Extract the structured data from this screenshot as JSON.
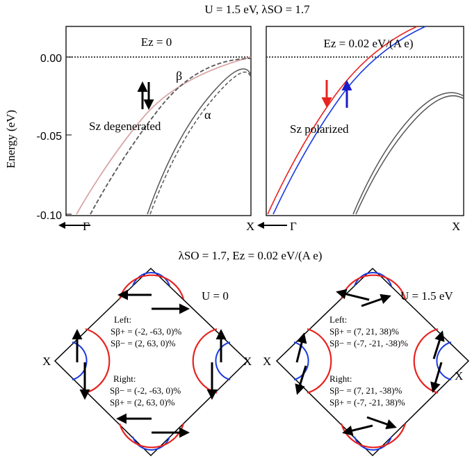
{
  "top": {
    "title": "U = 1.5 eV, λSO = 1.7",
    "ylabel": "Energy (eV)",
    "yticks": [
      "0.00",
      "-0.05",
      "-0.10"
    ],
    "left": {
      "label": "Ez = 0",
      "beta": "β",
      "alpha": "α",
      "note": "Sz degenerated",
      "x_start": "Γ",
      "x_end": "X"
    },
    "right": {
      "label": "Ez = 0.02 eV/(A e)",
      "note": "Sz polarized",
      "x_start": "Γ",
      "x_end": "X"
    }
  },
  "bottom": {
    "title": "λSO = 1.7, Ez = 0.02 eV/(A e)",
    "left": {
      "label": "U = 0",
      "x_left": "X",
      "x_right": "X",
      "left_head": "Left:",
      "left_line1": "Sβ+ = (-2, -63, 0)%",
      "left_line2": "Sβ− = (2, 63, 0)%",
      "right_head": "Right:",
      "right_line1": "Sβ− = (-2, -63, 0)%",
      "right_line2": "Sβ+ = (2, 63, 0)%"
    },
    "right": {
      "label": "U = 1.5 eV",
      "x_left": "X",
      "x_right": "X",
      "left_head": "Left:",
      "left_line1": "Sβ+ = (7, 21, 38)%",
      "left_line2": "Sβ− = (-7, -21, -38)%",
      "right_head": "Right:",
      "right_line1": "Sβ− = (7, 21, -38)%",
      "right_line2": "Sβ+ = (-7, -21, 38)%"
    }
  },
  "chart_data": [
    {
      "type": "line",
      "title": "Ez = 0",
      "xlabel": "",
      "ylabel": "Energy (eV)",
      "x_ticks": [
        "Γ",
        "X"
      ],
      "ylim": [
        -0.1,
        0.02
      ],
      "yticks": [
        0.0,
        -0.05,
        -0.1
      ],
      "grid": false,
      "series": [
        {
          "name": "β",
          "color": "#d4a3a3",
          "x": [
            0.05,
            0.15,
            0.3,
            0.5,
            0.7,
            0.9,
            1.0
          ],
          "values": [
            -0.1,
            -0.075,
            -0.045,
            -0.022,
            -0.009,
            -0.002,
            0.0
          ]
        },
        {
          "name": "",
          "color": "#555555",
          "x": [
            0.13,
            0.22,
            0.35,
            0.55,
            0.75,
            0.92,
            1.0
          ],
          "values": [
            -0.1,
            -0.078,
            -0.05,
            -0.027,
            -0.012,
            -0.004,
            -0.001
          ]
        },
        {
          "name": "α",
          "color": "#555555",
          "x": [
            0.5,
            0.6,
            0.72,
            0.85,
            0.95,
            1.0
          ],
          "values": [
            -0.1,
            -0.07,
            -0.04,
            -0.022,
            -0.014,
            -0.012
          ]
        },
        {
          "name": "",
          "color": "#555555",
          "x": [
            0.0,
            1.0
          ],
          "values": [
            0.0,
            0.0
          ]
        }
      ]
    },
    {
      "type": "line",
      "title": "Ez = 0.02 eV/(A e)",
      "xlabel": "",
      "ylabel": "",
      "x_ticks": [
        "Γ",
        "X"
      ],
      "ylim": [
        -0.1,
        0.02
      ],
      "grid": false,
      "series": [
        {
          "name": "",
          "color": "#e83a3a",
          "x": [
            0.0,
            0.15,
            0.35,
            0.55,
            0.72,
            0.85
          ],
          "values": [
            -0.1,
            -0.07,
            -0.04,
            -0.012,
            0.008,
            0.02
          ]
        },
        {
          "name": "",
          "color": "#3a55e8",
          "x": [
            0.02,
            0.17,
            0.37,
            0.57,
            0.74,
            0.89
          ],
          "values": [
            -0.1,
            -0.072,
            -0.042,
            -0.015,
            0.006,
            0.02
          ]
        },
        {
          "name": "",
          "color": "#555555",
          "x": [
            0.5,
            0.62,
            0.75,
            0.88,
            1.0
          ],
          "values": [
            -0.1,
            -0.07,
            -0.045,
            -0.03,
            -0.025
          ]
        },
        {
          "name": "",
          "color": "#555555",
          "x": [
            0.0,
            1.0
          ],
          "values": [
            0.0,
            0.0
          ]
        }
      ]
    }
  ]
}
